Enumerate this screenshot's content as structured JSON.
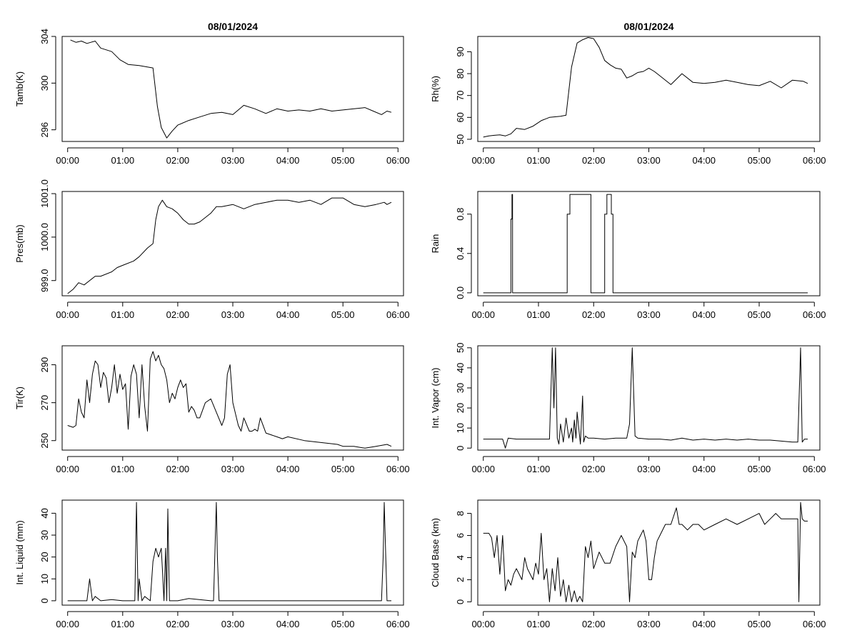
{
  "chart_data": [
    {
      "type": "line",
      "panel": "tamb",
      "title": "08/01/2024",
      "ylabel": "Tamb(K)",
      "ylim": [
        295,
        304
      ],
      "yticks": [
        296,
        300,
        304
      ],
      "xticks": [
        "00:00",
        "01:00",
        "02:00",
        "03:00",
        "04:00",
        "05:00",
        "06:00"
      ],
      "xlim_hours": [
        -0.1,
        6.1
      ],
      "x_hours": [
        0.05,
        0.15,
        0.25,
        0.35,
        0.5,
        0.6,
        0.8,
        0.95,
        1.1,
        1.3,
        1.55,
        1.63,
        1.7,
        1.8,
        1.9,
        2.0,
        2.2,
        2.4,
        2.6,
        2.8,
        3.0,
        3.2,
        3.4,
        3.6,
        3.8,
        4.0,
        4.2,
        4.4,
        4.6,
        4.8,
        5.0,
        5.2,
        5.4,
        5.55,
        5.7,
        5.8,
        5.88
      ],
      "values": [
        303.7,
        303.5,
        303.6,
        303.4,
        303.6,
        303.0,
        302.7,
        302.0,
        301.6,
        301.5,
        301.3,
        298.0,
        296.2,
        295.3,
        295.9,
        296.4,
        296.8,
        297.1,
        297.4,
        297.5,
        297.3,
        298.1,
        297.8,
        297.4,
        297.8,
        297.6,
        297.7,
        297.6,
        297.8,
        297.6,
        297.7,
        297.8,
        297.9,
        297.6,
        297.3,
        297.6,
        297.5
      ]
    },
    {
      "type": "line",
      "panel": "rh",
      "title": "08/01/2024",
      "ylabel": "Rh(%)",
      "ylim": [
        49,
        97
      ],
      "yticks": [
        50,
        60,
        70,
        80,
        90
      ],
      "xticks": [
        "00:00",
        "01:00",
        "02:00",
        "03:00",
        "04:00",
        "05:00",
        "06:00"
      ],
      "xlim_hours": [
        -0.1,
        6.1
      ],
      "x_hours": [
        0.0,
        0.1,
        0.2,
        0.3,
        0.4,
        0.5,
        0.6,
        0.75,
        0.9,
        1.05,
        1.2,
        1.4,
        1.5,
        1.6,
        1.7,
        1.8,
        1.9,
        2.0,
        2.1,
        2.2,
        2.3,
        2.4,
        2.5,
        2.6,
        2.7,
        2.8,
        2.9,
        3.0,
        3.1,
        3.2,
        3.4,
        3.6,
        3.8,
        4.0,
        4.2,
        4.4,
        4.6,
        4.8,
        5.0,
        5.2,
        5.4,
        5.6,
        5.8,
        5.88
      ],
      "values": [
        51.0,
        51.5,
        51.8,
        52.0,
        51.5,
        52.5,
        55.0,
        54.5,
        56.0,
        58.5,
        60.0,
        60.5,
        61.0,
        83.0,
        94.0,
        95.5,
        96.5,
        96.0,
        92.0,
        86.0,
        84.0,
        82.5,
        82.0,
        78.0,
        79.0,
        80.5,
        81.0,
        82.5,
        81.0,
        79.0,
        75.0,
        80.0,
        76.0,
        75.5,
        76.0,
        77.0,
        76.0,
        75.0,
        74.5,
        76.5,
        73.5,
        77.0,
        76.5,
        75.5
      ]
    },
    {
      "type": "line",
      "panel": "pres",
      "ylabel": "Pres(mb)",
      "ylim": [
        998.65,
        1001.05
      ],
      "yticks": [
        999.0,
        1000.0,
        1001.0
      ],
      "ytick_labels": [
        "999.0",
        "1000.0",
        "1001.0"
      ],
      "xticks": [
        "00:00",
        "01:00",
        "02:00",
        "03:00",
        "04:00",
        "05:00",
        "06:00"
      ],
      "xlim_hours": [
        -0.1,
        6.1
      ],
      "x_hours": [
        0.0,
        0.1,
        0.2,
        0.3,
        0.5,
        0.6,
        0.8,
        0.9,
        1.0,
        1.2,
        1.3,
        1.45,
        1.55,
        1.6,
        1.65,
        1.72,
        1.8,
        1.9,
        2.0,
        2.1,
        2.2,
        2.3,
        2.4,
        2.5,
        2.6,
        2.7,
        2.8,
        3.0,
        3.2,
        3.4,
        3.6,
        3.8,
        4.0,
        4.2,
        4.4,
        4.6,
        4.8,
        5.0,
        5.2,
        5.4,
        5.6,
        5.75,
        5.8,
        5.88
      ],
      "values": [
        998.7,
        998.8,
        998.95,
        998.9,
        999.1,
        999.1,
        999.2,
        999.3,
        999.35,
        999.45,
        999.55,
        999.75,
        999.85,
        1000.4,
        1000.7,
        1000.85,
        1000.7,
        1000.65,
        1000.55,
        1000.4,
        1000.3,
        1000.3,
        1000.35,
        1000.45,
        1000.55,
        1000.7,
        1000.7,
        1000.75,
        1000.65,
        1000.75,
        1000.8,
        1000.85,
        1000.85,
        1000.8,
        1000.85,
        1000.75,
        1000.9,
        1000.9,
        1000.75,
        1000.7,
        1000.75,
        1000.8,
        1000.75,
        1000.8
      ]
    },
    {
      "type": "step",
      "panel": "rain",
      "ylabel": "Rain",
      "ylim": [
        -0.03,
        1.03
      ],
      "yticks": [
        0.0,
        0.4,
        0.8
      ],
      "ytick_labels": [
        "0.0",
        "0.4",
        "0.8"
      ],
      "xticks": [
        "00:00",
        "01:00",
        "02:00",
        "03:00",
        "04:00",
        "05:00",
        "06:00"
      ],
      "xlim_hours": [
        -0.1,
        6.1
      ],
      "x_hours": [
        0.0,
        0.5,
        0.5,
        0.52,
        0.52,
        0.53,
        0.53,
        1.52,
        1.52,
        1.57,
        1.57,
        1.95,
        1.95,
        2.2,
        2.2,
        2.24,
        2.24,
        2.32,
        2.32,
        2.35,
        2.35,
        5.88
      ],
      "values": [
        0,
        0,
        0.75,
        0.75,
        1.0,
        1.0,
        0,
        0,
        0.8,
        0.8,
        1.0,
        1.0,
        0,
        0,
        0.8,
        0.8,
        1.0,
        1.0,
        0.8,
        0.8,
        0,
        0
      ]
    },
    {
      "type": "line",
      "panel": "tir",
      "ylabel": "Tir(K)",
      "ylim": [
        245,
        300
      ],
      "yticks": [
        250,
        270,
        290
      ],
      "xticks": [
        "00:00",
        "01:00",
        "02:00",
        "03:00",
        "04:00",
        "05:00",
        "06:00"
      ],
      "xlim_hours": [
        -0.1,
        6.1
      ],
      "x_hours": [
        0.0,
        0.1,
        0.15,
        0.2,
        0.25,
        0.3,
        0.35,
        0.4,
        0.45,
        0.5,
        0.55,
        0.6,
        0.65,
        0.7,
        0.75,
        0.8,
        0.85,
        0.9,
        0.95,
        1.0,
        1.05,
        1.1,
        1.15,
        1.2,
        1.25,
        1.3,
        1.35,
        1.4,
        1.45,
        1.5,
        1.55,
        1.6,
        1.65,
        1.7,
        1.75,
        1.8,
        1.85,
        1.9,
        1.95,
        2.0,
        2.05,
        2.1,
        2.15,
        2.2,
        2.25,
        2.3,
        2.35,
        2.4,
        2.45,
        2.5,
        2.6,
        2.7,
        2.8,
        2.85,
        2.9,
        2.95,
        3.0,
        3.1,
        3.15,
        3.2,
        3.3,
        3.35,
        3.4,
        3.45,
        3.5,
        3.6,
        3.8,
        3.9,
        4.0,
        4.3,
        4.6,
        4.9,
        5.0,
        5.2,
        5.4,
        5.6,
        5.8,
        5.88
      ],
      "values": [
        258,
        257,
        258,
        272,
        265,
        262,
        282,
        270,
        285,
        292,
        290,
        278,
        286,
        283,
        270,
        278,
        290,
        275,
        285,
        277,
        280,
        256,
        284,
        290,
        285,
        262,
        290,
        268,
        255,
        293,
        297,
        292,
        295,
        290,
        288,
        282,
        270,
        275,
        272,
        278,
        282,
        278,
        280,
        265,
        268,
        266,
        262,
        262,
        266,
        270,
        272,
        265,
        258,
        262,
        285,
        290,
        270,
        258,
        255,
        262,
        255,
        255,
        256,
        255,
        262,
        254,
        252,
        251,
        252,
        250,
        249,
        248,
        247,
        247,
        246,
        247,
        248,
        247
      ]
    },
    {
      "type": "line",
      "panel": "vapor",
      "ylabel": "Int. Vapor (cm)",
      "ylim": [
        -1,
        51
      ],
      "yticks": [
        0,
        10,
        20,
        30,
        40,
        50
      ],
      "xticks": [
        "00:00",
        "01:00",
        "02:00",
        "03:00",
        "04:00",
        "05:00",
        "06:00"
      ],
      "xlim_hours": [
        -0.1,
        6.1
      ],
      "x_hours": [
        0.0,
        0.35,
        0.4,
        0.45,
        0.6,
        1.0,
        1.2,
        1.25,
        1.28,
        1.31,
        1.34,
        1.37,
        1.4,
        1.45,
        1.5,
        1.55,
        1.6,
        1.62,
        1.65,
        1.68,
        1.7,
        1.73,
        1.76,
        1.8,
        1.82,
        1.85,
        1.9,
        2.0,
        2.2,
        2.4,
        2.6,
        2.65,
        2.7,
        2.75,
        2.8,
        3.0,
        3.2,
        3.4,
        3.6,
        3.8,
        4.0,
        4.2,
        4.4,
        4.6,
        4.8,
        5.0,
        5.2,
        5.4,
        5.6,
        5.7,
        5.75,
        5.78,
        5.82,
        5.88
      ],
      "values": [
        4.5,
        4.5,
        0.0,
        5.0,
        4.5,
        4.5,
        4.5,
        50.0,
        20.0,
        50.0,
        5.0,
        2.0,
        12.0,
        3.0,
        15.0,
        5.0,
        10.0,
        3.0,
        14.0,
        5.0,
        18.0,
        10.0,
        2.0,
        26.0,
        3.0,
        6.0,
        5.0,
        5.0,
        4.5,
        5.0,
        5.0,
        12.0,
        50.0,
        6.0,
        5.0,
        4.5,
        4.5,
        4.0,
        5.0,
        4.0,
        4.5,
        4.0,
        4.5,
        4.0,
        4.5,
        4.0,
        4.0,
        3.5,
        3.0,
        3.0,
        50.0,
        3.0,
        4.5,
        4.5
      ]
    },
    {
      "type": "line",
      "panel": "liquid",
      "ylabel": "Int. Liquid (mm)",
      "ylim": [
        -2,
        46
      ],
      "yticks": [
        0,
        10,
        20,
        30,
        40
      ],
      "xticks": [
        "00:00",
        "01:00",
        "02:00",
        "03:00",
        "04:00",
        "05:00",
        "06:00"
      ],
      "xlim_hours": [
        -0.1,
        6.1
      ],
      "x_hours": [
        0.0,
        0.35,
        0.4,
        0.45,
        0.5,
        0.6,
        0.8,
        1.0,
        1.22,
        1.25,
        1.28,
        1.3,
        1.35,
        1.4,
        1.5,
        1.55,
        1.6,
        1.65,
        1.7,
        1.72,
        1.75,
        1.78,
        1.8,
        1.82,
        1.85,
        1.95,
        2.0,
        2.2,
        2.6,
        2.65,
        2.7,
        2.72,
        2.75,
        3.0,
        4.0,
        5.0,
        5.65,
        5.7,
        5.73,
        5.75,
        5.8,
        5.88
      ],
      "values": [
        0,
        0,
        10,
        0,
        2,
        0,
        0.5,
        0,
        0,
        45,
        0,
        10,
        0,
        2,
        0,
        18,
        24,
        20,
        24,
        15,
        0,
        24,
        0,
        42,
        0,
        0,
        0,
        1,
        0,
        0,
        45,
        20,
        0,
        0,
        0,
        0,
        0,
        0,
        20,
        45,
        0,
        0
      ]
    },
    {
      "type": "line",
      "panel": "cloudbase",
      "ylabel": "Cloud Base (km)",
      "ylim": [
        -0.3,
        9.2
      ],
      "yticks": [
        0,
        2,
        4,
        6,
        8
      ],
      "xticks": [
        "00:00",
        "01:00",
        "02:00",
        "03:00",
        "04:00",
        "05:00",
        "06:00"
      ],
      "xlim_hours": [
        -0.1,
        6.1
      ],
      "x_hours": [
        0.0,
        0.1,
        0.15,
        0.2,
        0.25,
        0.3,
        0.35,
        0.4,
        0.45,
        0.5,
        0.55,
        0.6,
        0.7,
        0.75,
        0.8,
        0.9,
        0.95,
        1.0,
        1.05,
        1.1,
        1.15,
        1.2,
        1.25,
        1.3,
        1.35,
        1.4,
        1.45,
        1.5,
        1.55,
        1.6,
        1.65,
        1.7,
        1.75,
        1.8,
        1.85,
        1.9,
        1.95,
        2.0,
        2.1,
        2.2,
        2.3,
        2.4,
        2.5,
        2.6,
        2.65,
        2.7,
        2.75,
        2.8,
        2.85,
        2.9,
        2.95,
        3.0,
        3.05,
        3.1,
        3.15,
        3.2,
        3.3,
        3.4,
        3.5,
        3.55,
        3.6,
        3.7,
        3.8,
        3.9,
        4.0,
        4.2,
        4.4,
        4.6,
        4.8,
        5.0,
        5.1,
        5.2,
        5.3,
        5.4,
        5.5,
        5.6,
        5.7,
        5.72,
        5.75,
        5.78,
        5.82,
        5.88
      ],
      "values": [
        6.2,
        6.2,
        5.8,
        4.0,
        6.0,
        2.5,
        6.0,
        1.0,
        2.0,
        1.5,
        2.5,
        3.0,
        2.0,
        4.0,
        3.0,
        2.0,
        3.5,
        2.5,
        6.2,
        2.0,
        3.0,
        0.0,
        3.0,
        1.0,
        4.0,
        0.5,
        2.0,
        0.0,
        1.5,
        0.0,
        1.0,
        0.0,
        0.5,
        0.0,
        5.0,
        4.0,
        5.5,
        3.0,
        4.5,
        3.5,
        3.5,
        5.0,
        6.0,
        5.0,
        0.0,
        4.5,
        4.0,
        5.5,
        6.0,
        6.5,
        5.5,
        2.0,
        2.0,
        4.0,
        5.5,
        6.0,
        7.0,
        7.0,
        8.5,
        7.0,
        7.0,
        6.5,
        7.0,
        7.0,
        6.5,
        7.0,
        7.5,
        7.0,
        7.5,
        8.0,
        7.0,
        7.5,
        8.0,
        7.5,
        7.5,
        7.5,
        7.5,
        0.0,
        9.0,
        7.5,
        7.3,
        7.3
      ]
    }
  ]
}
